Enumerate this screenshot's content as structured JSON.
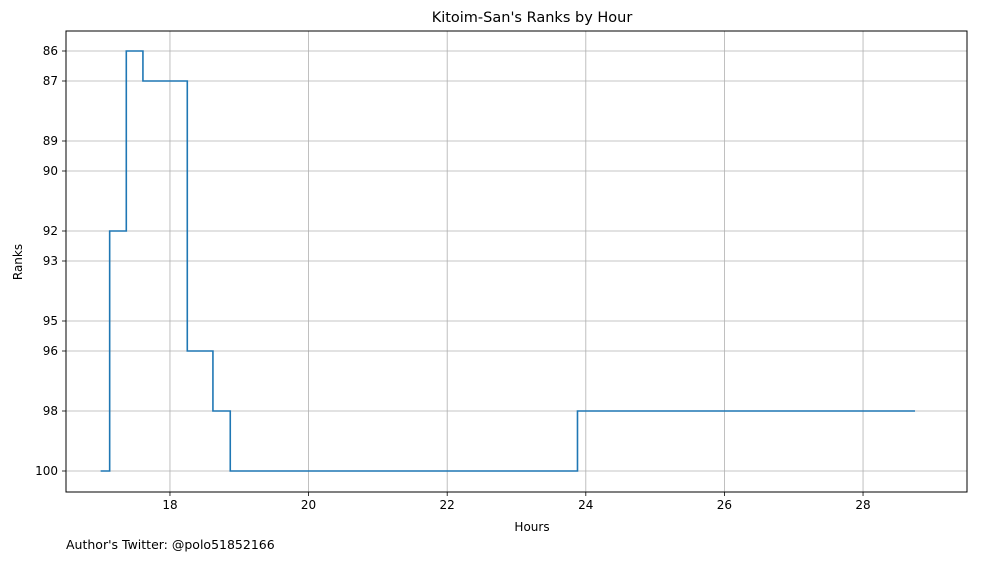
{
  "chart_data": {
    "type": "line",
    "step": "post",
    "title": "Kitoim-San's Ranks by Hour",
    "xlabel": "Hours",
    "ylabel": "Ranks",
    "xlim": [
      16.5,
      29.5
    ],
    "ylim": [
      86,
      100
    ],
    "y_inverted": true,
    "grid": true,
    "xticks": [
      18,
      20,
      22,
      24,
      26,
      28
    ],
    "yticks": [
      86,
      87,
      89,
      90,
      92,
      93,
      95,
      96,
      98,
      100
    ],
    "series": [
      {
        "color": "#1f77b4",
        "x": [
          17.0,
          17.13,
          17.37,
          17.61,
          18.25,
          18.62,
          18.87,
          23.88,
          28.75
        ],
        "y": [
          100,
          92,
          86,
          87,
          96,
          98,
          100,
          98,
          98
        ]
      }
    ]
  },
  "footer": {
    "text": "Author's Twitter: @polo51852166"
  }
}
